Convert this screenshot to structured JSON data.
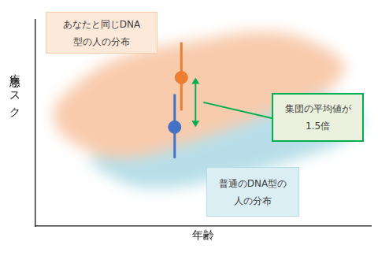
{
  "chart_data": {
    "type": "scatter",
    "x_label": "年齢",
    "y_label": "疾患リスク",
    "xlim": [
      0,
      100
    ],
    "ylim": [
      0,
      100
    ],
    "tick_labels": false,
    "grid": false,
    "series": [
      {
        "color": "#ed7d31",
        "x": 43.5,
        "y": 72,
        "error": [
          56,
          89
        ]
      },
      {
        "color": "#4472c4",
        "x": 41.5,
        "y": 48,
        "error": [
          33,
          64
        ]
      }
    ],
    "bands": [
      {
        "color": "#f8cbad",
        "x": [
          5,
          8,
          24,
          48,
          71,
          87,
          92
        ],
        "upper": [
          55,
          63,
          81,
          90,
          94,
          85,
          77
        ],
        "lower": [
          55,
          44,
          33,
          42,
          56,
          67,
          77
        ]
      },
      {
        "color": "#b7dee8",
        "x": [
          15,
          31,
          55,
          78,
          92,
          97
        ],
        "upper": [
          31,
          44,
          56,
          63,
          60,
          50
        ],
        "lower": [
          31,
          19,
          23,
          33,
          42,
          50
        ]
      }
    ],
    "annotations": [
      {
        "lines": [
          "あなたと同じDNA",
          "型の人の分布"
        ]
      },
      {
        "lines": [
          "集団の平均値が",
          "1.5倍"
        ]
      },
      {
        "lines": [
          "普通のDNA型の",
          "人の分布"
        ]
      }
    ]
  }
}
